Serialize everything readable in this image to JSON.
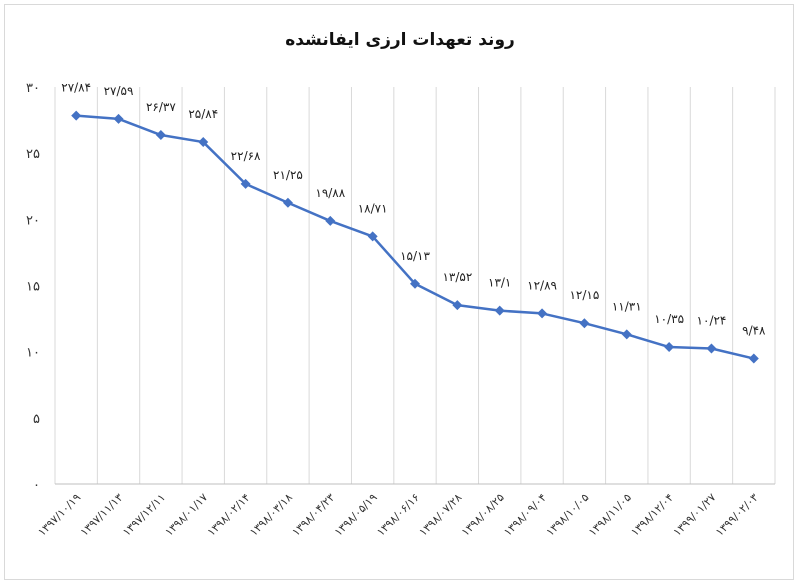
{
  "chart_data": {
    "type": "line",
    "title": "روند تعهدات ارزی ایفانشده",
    "xlabel": "",
    "ylabel": "",
    "ylim": [
      0,
      30
    ],
    "yticks": [
      "۰",
      "۵",
      "۱۰",
      "۱۵",
      "۲۰",
      "۲۵",
      "۳۰"
    ],
    "grid": "vertical",
    "legend": "none",
    "line_color": "#4472c4",
    "categories": [
      "۱۳۹۷/۱۰/۱۹",
      "۱۳۹۷/۱۱/۱۳",
      "۱۳۹۷/۱۲/۱۱",
      "۱۳۹۸/۰۱/۱۷",
      "۱۳۹۸/۰۲/۱۴",
      "۱۳۹۸/۰۳/۱۸",
      "۱۳۹۸/۰۴/۲۳",
      "۱۳۹۸/۰۵/۱۹",
      "۱۳۹۸/۰۶/۱۶",
      "۱۳۹۸/۰۷/۲۸",
      "۱۳۹۸/۰۸/۲۵",
      "۱۳۹۸/۰۹/۰۴",
      "۱۳۹۸/۱۰/۰۵",
      "۱۳۹۸/۱۱/۰۵",
      "۱۳۹۸/۱۲/۰۴",
      "۱۳۹۹/۰۱/۲۷",
      "۱۳۹۹/۰۲/۰۳"
    ],
    "values": [
      27.84,
      27.59,
      26.37,
      25.84,
      22.68,
      21.25,
      19.88,
      18.71,
      15.13,
      13.52,
      13.1,
      12.89,
      12.15,
      11.31,
      10.35,
      10.24,
      9.48
    ],
    "data_labels": [
      "۲۷/۸۴",
      "۲۷/۵۹",
      "۲۶/۳۷",
      "۲۵/۸۴",
      "۲۲/۶۸",
      "۲۱/۲۵",
      "۱۹/۸۸",
      "۱۸/۷۱",
      "۱۵/۱۳",
      "۱۳/۵۲",
      "۱۳/۱",
      "۱۲/۸۹",
      "۱۲/۱۵",
      "۱۱/۳۱",
      "۱۰/۳۵",
      "۱۰/۲۴",
      "۹/۴۸"
    ]
  }
}
